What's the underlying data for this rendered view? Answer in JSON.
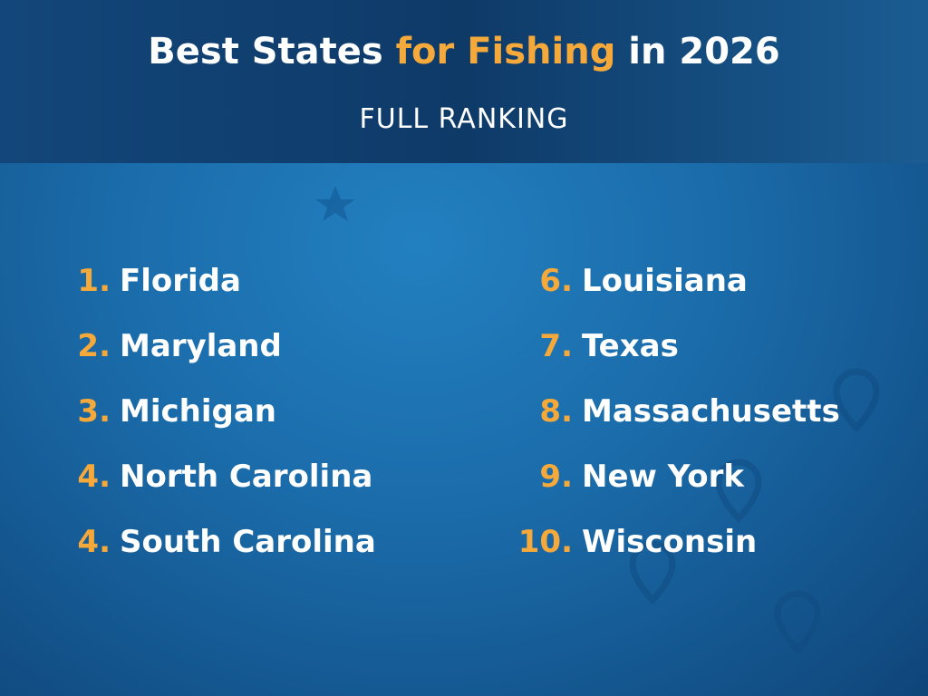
{
  "header": {
    "title": {
      "part1": "Best States",
      "part2": "for Fishing",
      "part3": "in 2026"
    },
    "subtitle": "FULL RANKING"
  },
  "rankings": {
    "left": [
      {
        "rank": "1.",
        "name": "Florida"
      },
      {
        "rank": "2.",
        "name": "Maryland"
      },
      {
        "rank": "3.",
        "name": "Michigan"
      },
      {
        "rank": "4.",
        "name": "North Carolina"
      },
      {
        "rank": "4.",
        "name": "South Carolina"
      }
    ],
    "right": [
      {
        "rank": "6.",
        "name": "Louisiana"
      },
      {
        "rank": "7.",
        "name": "Texas"
      },
      {
        "rank": "8.",
        "name": "Massachusetts"
      },
      {
        "rank": "9.",
        "name": "New York"
      },
      {
        "rank": "10.",
        "name": "Wisconsin"
      }
    ]
  }
}
